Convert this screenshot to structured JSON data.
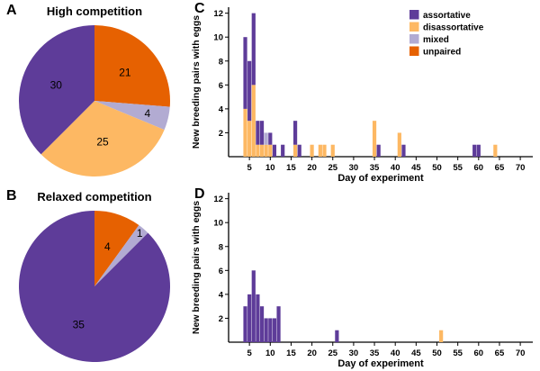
{
  "figure": {
    "background": "#ffffff",
    "panel_labels": {
      "A": "A",
      "B": "B",
      "C": "C",
      "D": "D"
    }
  },
  "palette": {
    "assortative": "#5e3c99",
    "disassortative": "#fdb863",
    "mixed": "#b2abd2",
    "unpaired": "#e66101"
  },
  "legend": {
    "items": [
      {
        "key": "assortative",
        "label": "assortative"
      },
      {
        "key": "disassortative",
        "label": "disassortative"
      },
      {
        "key": "mixed",
        "label": "mixed"
      },
      {
        "key": "unpaired",
        "label": "unpaired"
      }
    ]
  },
  "chart_data": [
    {
      "id": "A",
      "type": "pie",
      "title": "High competition",
      "start_angle_deg": -90,
      "direction": "clockwise",
      "slices": [
        {
          "label": "unpaired",
          "value": 21
        },
        {
          "label": "mixed",
          "value": 4
        },
        {
          "label": "disassortative",
          "value": 25
        },
        {
          "label": "assortative",
          "value": 30
        }
      ]
    },
    {
      "id": "B",
      "type": "pie",
      "title": "Relaxed competition",
      "start_angle_deg": -90,
      "direction": "clockwise",
      "slices": [
        {
          "label": "unpaired",
          "value": 4
        },
        {
          "label": "mixed",
          "value": 1
        },
        {
          "label": "assortative",
          "value": 35
        }
      ]
    },
    {
      "id": "C",
      "type": "bar",
      "stacked": true,
      "xlabel": "Day of experiment",
      "ylabel": "New breeding pairs with eggs",
      "xlim": [
        0,
        73
      ],
      "ylim": [
        0,
        12.5
      ],
      "xticks": [
        5,
        10,
        15,
        20,
        25,
        30,
        35,
        40,
        45,
        50,
        55,
        60,
        65,
        70
      ],
      "yticks": [
        2,
        4,
        6,
        8,
        10,
        12
      ],
      "legend": true,
      "bars": [
        {
          "day": 4,
          "segments": [
            {
              "series": "disassortative",
              "value": 4
            },
            {
              "series": "assortative",
              "value": 6
            }
          ]
        },
        {
          "day": 5,
          "segments": [
            {
              "series": "disassortative",
              "value": 3
            },
            {
              "series": "assortative",
              "value": 5
            }
          ]
        },
        {
          "day": 6,
          "segments": [
            {
              "series": "disassortative",
              "value": 6
            },
            {
              "series": "assortative",
              "value": 6
            }
          ]
        },
        {
          "day": 7,
          "segments": [
            {
              "series": "disassortative",
              "value": 1
            },
            {
              "series": "assortative",
              "value": 2
            }
          ]
        },
        {
          "day": 8,
          "segments": [
            {
              "series": "disassortative",
              "value": 1
            },
            {
              "series": "assortative",
              "value": 2
            }
          ]
        },
        {
          "day": 9,
          "segments": [
            {
              "series": "disassortative",
              "value": 1
            },
            {
              "series": "mixed",
              "value": 1
            }
          ]
        },
        {
          "day": 10,
          "segments": [
            {
              "series": "disassortative",
              "value": 1
            },
            {
              "series": "assortative",
              "value": 1
            }
          ]
        },
        {
          "day": 11,
          "segments": [
            {
              "series": "assortative",
              "value": 1
            }
          ]
        },
        {
          "day": 13,
          "segments": [
            {
              "series": "assortative",
              "value": 1
            }
          ]
        },
        {
          "day": 16,
          "segments": [
            {
              "series": "disassortative",
              "value": 1
            },
            {
              "series": "assortative",
              "value": 2
            }
          ]
        },
        {
          "day": 17,
          "segments": [
            {
              "series": "assortative",
              "value": 1
            }
          ]
        },
        {
          "day": 20,
          "segments": [
            {
              "series": "disassortative",
              "value": 1
            }
          ]
        },
        {
          "day": 22,
          "segments": [
            {
              "series": "disassortative",
              "value": 1
            }
          ]
        },
        {
          "day": 23,
          "segments": [
            {
              "series": "disassortative",
              "value": 1
            }
          ]
        },
        {
          "day": 25,
          "segments": [
            {
              "series": "disassortative",
              "value": 1
            }
          ]
        },
        {
          "day": 35,
          "segments": [
            {
              "series": "disassortative",
              "value": 3
            }
          ]
        },
        {
          "day": 36,
          "segments": [
            {
              "series": "assortative",
              "value": 1
            }
          ]
        },
        {
          "day": 41,
          "segments": [
            {
              "series": "disassortative",
              "value": 2
            }
          ]
        },
        {
          "day": 42,
          "segments": [
            {
              "series": "assortative",
              "value": 1
            }
          ]
        },
        {
          "day": 59,
          "segments": [
            {
              "series": "assortative",
              "value": 1
            }
          ]
        },
        {
          "day": 60,
          "segments": [
            {
              "series": "assortative",
              "value": 1
            }
          ]
        },
        {
          "day": 64,
          "segments": [
            {
              "series": "disassortative",
              "value": 1
            }
          ]
        }
      ]
    },
    {
      "id": "D",
      "type": "bar",
      "stacked": true,
      "xlabel": "Day of experiment",
      "ylabel": "New breeding pairs with eggs",
      "xlim": [
        0,
        73
      ],
      "ylim": [
        0,
        12.5
      ],
      "xticks": [
        5,
        10,
        15,
        20,
        25,
        30,
        35,
        40,
        45,
        50,
        55,
        60,
        65,
        70
      ],
      "yticks": [
        2,
        4,
        6,
        8,
        10,
        12
      ],
      "legend": false,
      "bars": [
        {
          "day": 4,
          "segments": [
            {
              "series": "assortative",
              "value": 3
            }
          ]
        },
        {
          "day": 5,
          "segments": [
            {
              "series": "assortative",
              "value": 4
            }
          ]
        },
        {
          "day": 6,
          "segments": [
            {
              "series": "assortative",
              "value": 6
            }
          ]
        },
        {
          "day": 7,
          "segments": [
            {
              "series": "assortative",
              "value": 4
            }
          ]
        },
        {
          "day": 8,
          "segments": [
            {
              "series": "assortative",
              "value": 3
            }
          ]
        },
        {
          "day": 9,
          "segments": [
            {
              "series": "assortative",
              "value": 2
            }
          ]
        },
        {
          "day": 10,
          "segments": [
            {
              "series": "assortative",
              "value": 2
            }
          ]
        },
        {
          "day": 11,
          "segments": [
            {
              "series": "assortative",
              "value": 2
            }
          ]
        },
        {
          "day": 12,
          "segments": [
            {
              "series": "assortative",
              "value": 3
            }
          ]
        },
        {
          "day": 26,
          "segments": [
            {
              "series": "assortative",
              "value": 1
            }
          ]
        },
        {
          "day": 51,
          "segments": [
            {
              "series": "disassortative",
              "value": 1
            }
          ]
        }
      ]
    }
  ]
}
